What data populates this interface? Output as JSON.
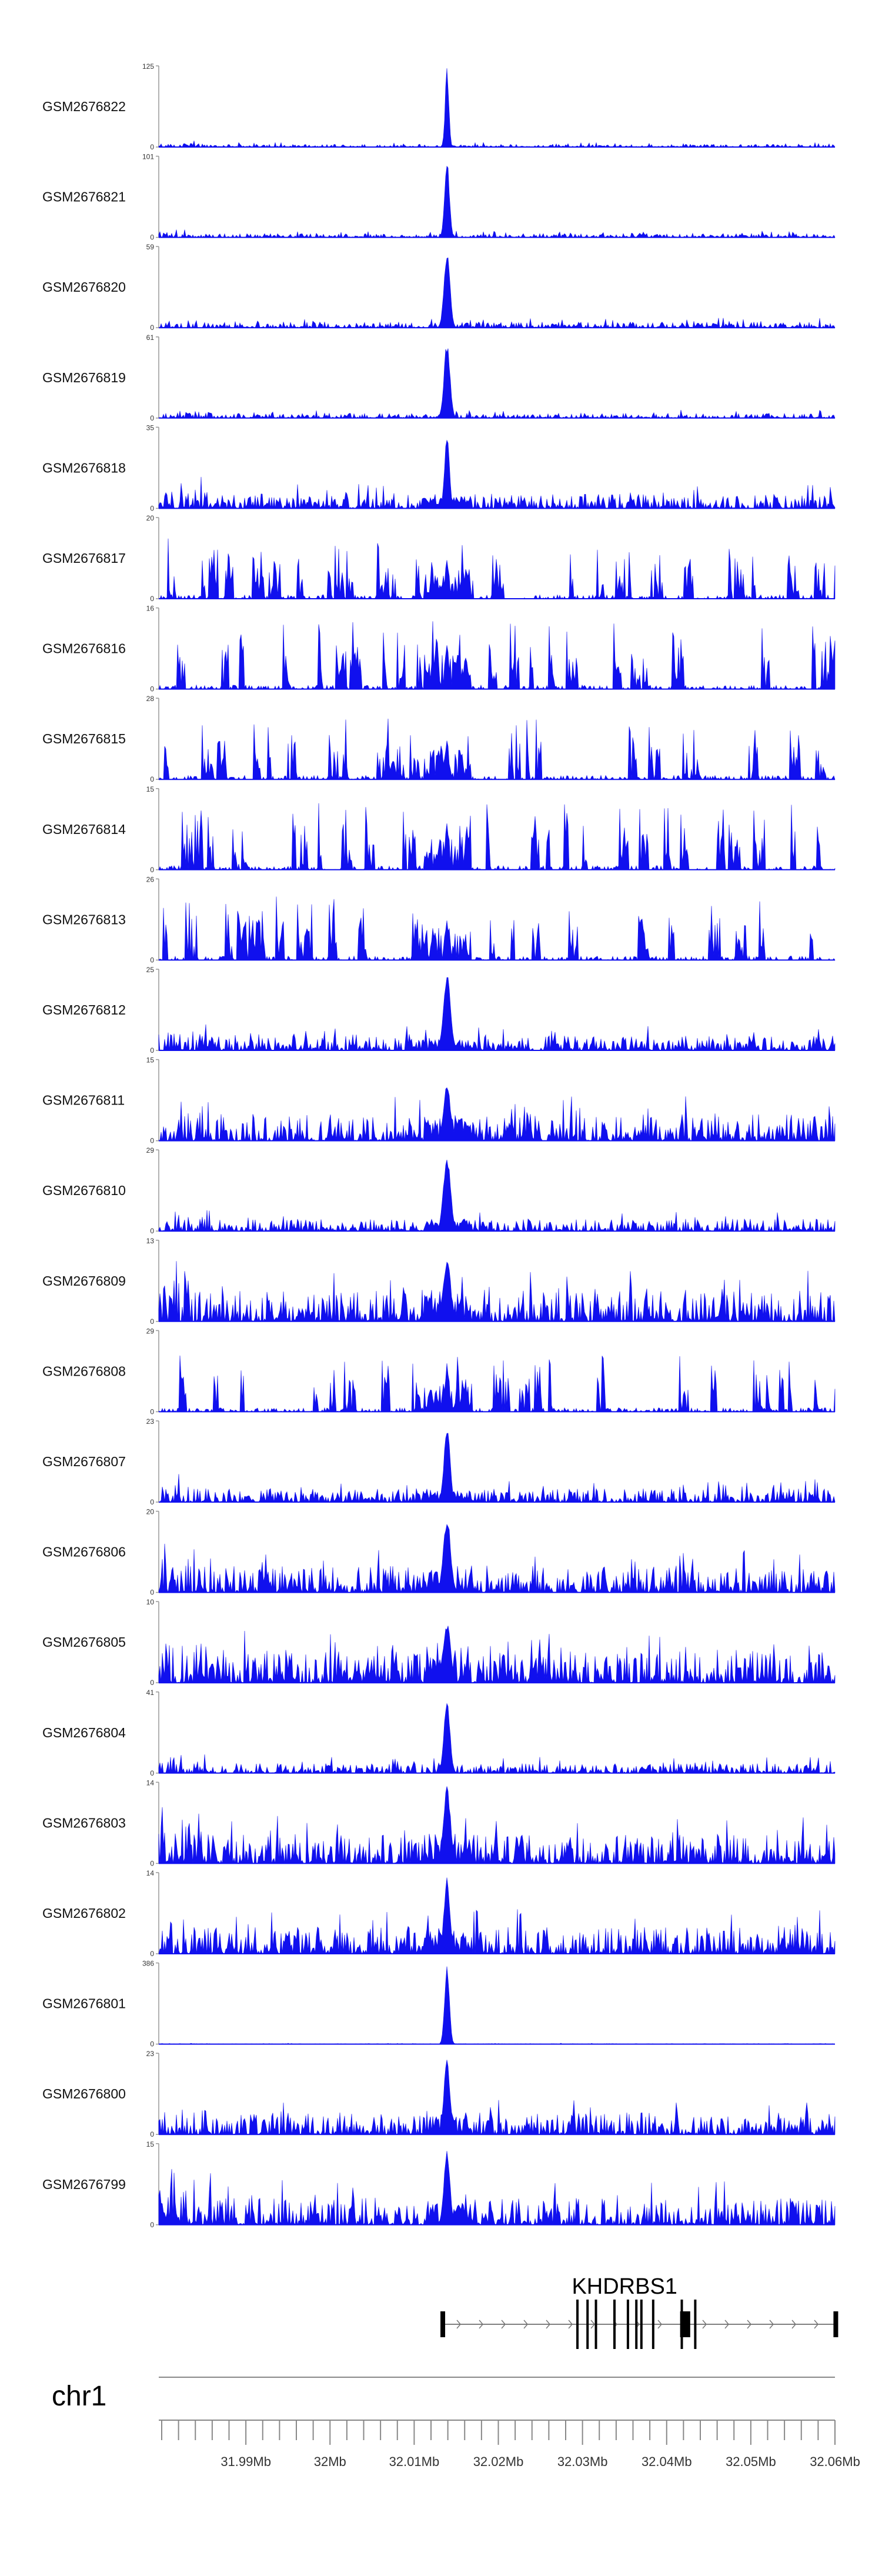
{
  "chart_data": {
    "type": "area",
    "title": "",
    "signal_color": "#1010ee",
    "tracks": [
      {
        "name": "GSM2676822",
        "ymax": "125",
        "ymin": "0",
        "noise": 0.06,
        "peak": 1.0,
        "peak_w": 3,
        "sparse": false,
        "seed": 1
      },
      {
        "name": "GSM2676821",
        "ymax": "101",
        "ymin": "0",
        "noise": 0.08,
        "peak": 0.95,
        "peak_w": 4,
        "sparse": false,
        "seed": 2
      },
      {
        "name": "GSM2676820",
        "ymax": "59",
        "ymin": "0",
        "noise": 0.12,
        "peak": 0.95,
        "peak_w": 5,
        "sparse": false,
        "seed": 3
      },
      {
        "name": "GSM2676819",
        "ymax": "61",
        "ymin": "0",
        "noise": 0.1,
        "peak": 0.95,
        "peak_w": 5,
        "sparse": false,
        "seed": 4
      },
      {
        "name": "GSM2676818",
        "ymax": "35",
        "ymin": "0",
        "noise": 0.3,
        "peak": 0.95,
        "peak_w": 4,
        "sparse": false,
        "seed": 5
      },
      {
        "name": "GSM2676817",
        "ymax": "20",
        "ymin": "0",
        "noise": 0.75,
        "peak": 0.5,
        "peak_w": 3,
        "sparse": true,
        "seed": 6
      },
      {
        "name": "GSM2676816",
        "ymax": "16",
        "ymin": "0",
        "noise": 0.85,
        "peak": 0.6,
        "peak_w": 3,
        "sparse": true,
        "seed": 7
      },
      {
        "name": "GSM2676815",
        "ymax": "28",
        "ymin": "0",
        "noise": 0.75,
        "peak": 0.5,
        "peak_w": 3,
        "sparse": true,
        "seed": 8
      },
      {
        "name": "GSM2676814",
        "ymax": "15",
        "ymin": "0",
        "noise": 0.85,
        "peak": 0.6,
        "peak_w": 3,
        "sparse": true,
        "seed": 9
      },
      {
        "name": "GSM2676813",
        "ymax": "26",
        "ymin": "0",
        "noise": 0.8,
        "peak": 0.5,
        "peak_w": 3,
        "sparse": true,
        "seed": 10
      },
      {
        "name": "GSM2676812",
        "ymax": "25",
        "ymin": "0",
        "noise": 0.3,
        "peak": 0.95,
        "peak_w": 6,
        "sparse": false,
        "seed": 11
      },
      {
        "name": "GSM2676811",
        "ymax": "15",
        "ymin": "0",
        "noise": 0.55,
        "peak": 0.7,
        "peak_w": 6,
        "sparse": false,
        "seed": 12
      },
      {
        "name": "GSM2676810",
        "ymax": "29",
        "ymin": "0",
        "noise": 0.25,
        "peak": 0.95,
        "peak_w": 6,
        "sparse": false,
        "seed": 13
      },
      {
        "name": "GSM2676809",
        "ymax": "13",
        "ymin": "0",
        "noise": 0.65,
        "peak": 0.8,
        "peak_w": 6,
        "sparse": false,
        "seed": 14
      },
      {
        "name": "GSM2676808",
        "ymax": "29",
        "ymin": "0",
        "noise": 0.7,
        "peak": 0.6,
        "peak_w": 3,
        "sparse": true,
        "seed": 15
      },
      {
        "name": "GSM2676807",
        "ymax": "23",
        "ymin": "0",
        "noise": 0.28,
        "peak": 0.95,
        "peak_w": 5,
        "sparse": false,
        "seed": 16
      },
      {
        "name": "GSM2676806",
        "ymax": "20",
        "ymin": "0",
        "noise": 0.55,
        "peak": 0.95,
        "peak_w": 6,
        "sparse": false,
        "seed": 17
      },
      {
        "name": "GSM2676805",
        "ymax": "10",
        "ymin": "0",
        "noise": 0.65,
        "peak": 0.75,
        "peak_w": 6,
        "sparse": false,
        "seed": 18
      },
      {
        "name": "GSM2676804",
        "ymax": "41",
        "ymin": "0",
        "noise": 0.2,
        "peak": 0.95,
        "peak_w": 5,
        "sparse": false,
        "seed": 19
      },
      {
        "name": "GSM2676803",
        "ymax": "14",
        "ymin": "0",
        "noise": 0.6,
        "peak": 0.95,
        "peak_w": 6,
        "sparse": false,
        "seed": 20
      },
      {
        "name": "GSM2676802",
        "ymax": "14",
        "ymin": "0",
        "noise": 0.55,
        "peak": 0.95,
        "peak_w": 5,
        "sparse": false,
        "seed": 21
      },
      {
        "name": "GSM2676801",
        "ymax": "386",
        "ymin": "0",
        "noise": 0.012,
        "peak": 1.0,
        "peak_w": 4,
        "sparse": false,
        "seed": 22
      },
      {
        "name": "GSM2676800",
        "ymax": "23",
        "ymin": "0",
        "noise": 0.45,
        "peak": 0.95,
        "peak_w": 5,
        "sparse": false,
        "seed": 23
      },
      {
        "name": "GSM2676799",
        "ymax": "15",
        "ymin": "0",
        "noise": 0.55,
        "peak": 0.95,
        "peak_w": 5,
        "sparse": false,
        "seed": 24
      }
    ],
    "peak_position_mb": 32.0139,
    "gene": {
      "name": "KHDRBS1",
      "start_mb": 32.0134,
      "end_mb": 32.0601,
      "strand": "+",
      "exons_mb": [
        32.0134,
        32.0294,
        32.0306,
        32.0316,
        32.0338,
        32.0354,
        32.0364,
        32.037,
        32.0384,
        32.0418,
        32.0434,
        32.0601
      ],
      "coding_block_mb": [
        32.0416,
        32.0428
      ]
    },
    "chromosome": "chr1",
    "xaxis": {
      "range_mb": [
        31.98,
        32.06
      ],
      "tick_labels": [
        "31.99Mb",
        "32Mb",
        "32.01Mb",
        "32.02Mb",
        "32.03Mb",
        "32.04Mb",
        "32.05Mb",
        "32.06Mb"
      ],
      "tick_values_mb": [
        31.99,
        32.0,
        32.01,
        32.02,
        32.03,
        32.04,
        32.05,
        32.06
      ],
      "minor_step_mb": 0.002
    }
  }
}
